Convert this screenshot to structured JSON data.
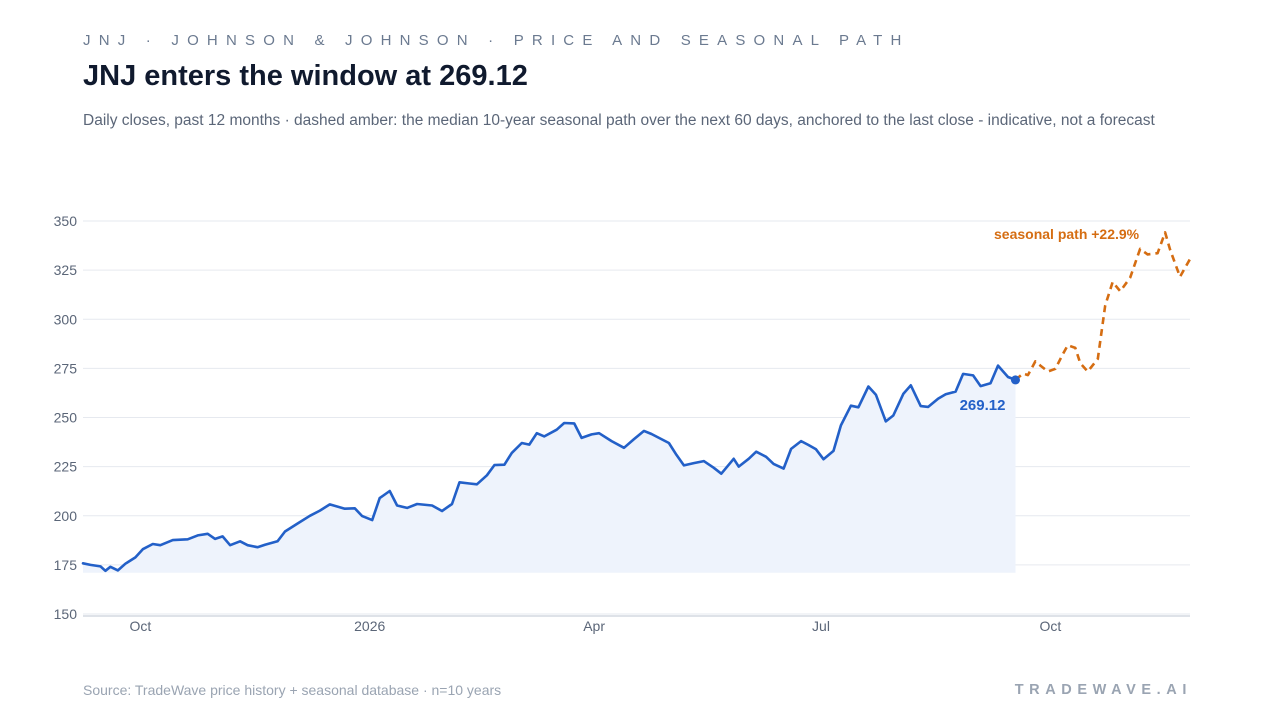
{
  "header": {
    "kicker": "JNJ · JOHNSON & JOHNSON · PRICE AND SEASONAL PATH",
    "title": "JNJ enters the window at 269.12",
    "subtitle": "Daily closes, past 12 months · dashed amber: the median 10-year seasonal path over the next 60 days, anchored to the last close - indicative, not a forecast"
  },
  "footer": {
    "source": "Source: TradeWave price history + seasonal database · n=10 years",
    "brand": "TRADEWAVE.AI"
  },
  "colors": {
    "price": "#2360c8",
    "area": "#eef3fc",
    "seasonal": "#d56d12",
    "grid": "#e6e9ef",
    "axis_text": "#5b6678"
  },
  "chart_data": {
    "type": "line",
    "x_ticks": [
      {
        "label": "Oct",
        "date": "2025-10-01"
      },
      {
        "label": "2026",
        "date": "2026-01-01"
      },
      {
        "label": "Apr",
        "date": "2026-04-01"
      },
      {
        "label": "Jul",
        "date": "2026-07-01"
      },
      {
        "label": "Oct",
        "date": "2026-10-01"
      }
    ],
    "xlim": [
      "2025-09-08",
      "2026-11-26"
    ],
    "ylim": [
      150,
      350
    ],
    "y_ticks": [
      150,
      175,
      200,
      225,
      250,
      275,
      300,
      325,
      350
    ],
    "grid": true,
    "series": [
      {
        "key": "price",
        "style": "solid",
        "points": [
          [
            "2025-09-08",
            175.8
          ],
          [
            "2025-09-11",
            175.0
          ],
          [
            "2025-09-15",
            174.2
          ],
          [
            "2025-09-17",
            172.0
          ],
          [
            "2025-09-19",
            174.0
          ],
          [
            "2025-09-22",
            172.2
          ],
          [
            "2025-09-25",
            175.6
          ],
          [
            "2025-09-29",
            178.8
          ],
          [
            "2025-10-02",
            183.0
          ],
          [
            "2025-10-06",
            185.6
          ],
          [
            "2025-10-09",
            185.0
          ],
          [
            "2025-10-14",
            187.6
          ],
          [
            "2025-10-20",
            188.0
          ],
          [
            "2025-10-24",
            190.0
          ],
          [
            "2025-10-28",
            190.8
          ],
          [
            "2025-10-31",
            188.2
          ],
          [
            "2025-11-03",
            189.5
          ],
          [
            "2025-11-06",
            185.0
          ],
          [
            "2025-11-10",
            187.0
          ],
          [
            "2025-11-13",
            185.0
          ],
          [
            "2025-11-17",
            184.0
          ],
          [
            "2025-11-20",
            185.2
          ],
          [
            "2025-11-25",
            187.0
          ],
          [
            "2025-11-28",
            192.0
          ],
          [
            "2025-12-03",
            196.0
          ],
          [
            "2025-12-08",
            200.0
          ],
          [
            "2025-12-12",
            202.6
          ],
          [
            "2025-12-16",
            205.8
          ],
          [
            "2025-12-22",
            203.6
          ],
          [
            "2025-12-26",
            203.8
          ],
          [
            "2025-12-29",
            199.8
          ],
          [
            "2026-01-02",
            197.8
          ],
          [
            "2026-01-05",
            209.0
          ],
          [
            "2026-01-09",
            212.6
          ],
          [
            "2026-01-12",
            205.2
          ],
          [
            "2026-01-16",
            204.0
          ],
          [
            "2026-01-20",
            206.0
          ],
          [
            "2026-01-26",
            205.2
          ],
          [
            "2026-01-30",
            202.4
          ],
          [
            "2026-02-03",
            206.0
          ],
          [
            "2026-02-06",
            217.0
          ],
          [
            "2026-02-10",
            216.4
          ],
          [
            "2026-02-13",
            216.0
          ],
          [
            "2026-02-17",
            220.6
          ],
          [
            "2026-02-20",
            225.8
          ],
          [
            "2026-02-24",
            226.0
          ],
          [
            "2026-02-27",
            232.0
          ],
          [
            "2026-03-03",
            237.0
          ],
          [
            "2026-03-06",
            236.2
          ],
          [
            "2026-03-09",
            242.0
          ],
          [
            "2026-03-12",
            240.4
          ],
          [
            "2026-03-17",
            243.8
          ],
          [
            "2026-03-20",
            247.2
          ],
          [
            "2026-03-24",
            247.0
          ],
          [
            "2026-03-27",
            239.6
          ],
          [
            "2026-03-31",
            241.4
          ],
          [
            "2026-04-03",
            242.0
          ],
          [
            "2026-04-08",
            238.0
          ],
          [
            "2026-04-13",
            234.6
          ],
          [
            "2026-04-17",
            239.0
          ],
          [
            "2026-04-21",
            243.2
          ],
          [
            "2026-04-24",
            241.6
          ],
          [
            "2026-04-28",
            239.0
          ],
          [
            "2026-05-01",
            237.0
          ],
          [
            "2026-05-04",
            231.0
          ],
          [
            "2026-05-07",
            225.6
          ],
          [
            "2026-05-11",
            226.8
          ],
          [
            "2026-05-15",
            227.8
          ],
          [
            "2026-05-19",
            224.4
          ],
          [
            "2026-05-22",
            221.4
          ],
          [
            "2026-05-27",
            229.0
          ],
          [
            "2026-05-29",
            225.0
          ],
          [
            "2026-06-02",
            229.0
          ],
          [
            "2026-06-05",
            232.6
          ],
          [
            "2026-06-09",
            230.0
          ],
          [
            "2026-06-12",
            226.4
          ],
          [
            "2026-06-16",
            224.0
          ],
          [
            "2026-06-19",
            234.0
          ],
          [
            "2026-06-23",
            238.0
          ],
          [
            "2026-06-26",
            236.0
          ],
          [
            "2026-06-29",
            233.8
          ],
          [
            "2026-07-02",
            228.8
          ],
          [
            "2026-07-06",
            233.0
          ],
          [
            "2026-07-09",
            246.0
          ],
          [
            "2026-07-13",
            256.0
          ],
          [
            "2026-07-16",
            255.2
          ],
          [
            "2026-07-20",
            265.8
          ],
          [
            "2026-07-23",
            261.6
          ],
          [
            "2026-07-27",
            248.0
          ],
          [
            "2026-07-30",
            251.0
          ],
          [
            "2026-08-03",
            262.0
          ],
          [
            "2026-08-06",
            266.4
          ],
          [
            "2026-08-10",
            255.8
          ],
          [
            "2026-08-13",
            255.4
          ],
          [
            "2026-08-17",
            259.6
          ],
          [
            "2026-08-20",
            261.8
          ],
          [
            "2026-08-24",
            263.2
          ],
          [
            "2026-08-27",
            272.2
          ],
          [
            "2026-08-31",
            271.4
          ],
          [
            "2026-09-03",
            266.0
          ],
          [
            "2026-09-07",
            267.4
          ],
          [
            "2026-09-10",
            276.4
          ],
          [
            "2026-09-14",
            270.6
          ],
          [
            "2026-09-17",
            269.12
          ]
        ]
      },
      {
        "key": "seasonal",
        "style": "dashed",
        "points": [
          [
            "2026-09-17",
            269.12
          ],
          [
            "2026-09-20",
            272.4
          ],
          [
            "2026-09-22",
            271.6
          ],
          [
            "2026-09-25",
            278.6
          ],
          [
            "2026-09-27",
            276.4
          ],
          [
            "2026-09-30",
            273.4
          ],
          [
            "2026-10-03",
            274.8
          ],
          [
            "2026-10-06",
            282.2
          ],
          [
            "2026-10-08",
            286.8
          ],
          [
            "2026-10-11",
            285.4
          ],
          [
            "2026-10-13",
            277.6
          ],
          [
            "2026-10-16",
            273.4
          ],
          [
            "2026-10-20",
            279.8
          ],
          [
            "2026-10-23",
            307.0
          ],
          [
            "2026-10-26",
            319.0
          ],
          [
            "2026-10-29",
            314.2
          ],
          [
            "2026-11-02",
            321.2
          ],
          [
            "2026-11-06",
            335.8
          ],
          [
            "2026-11-09",
            333.0
          ],
          [
            "2026-11-13",
            333.6
          ],
          [
            "2026-11-16",
            344.2
          ],
          [
            "2026-11-18",
            335.4
          ],
          [
            "2026-11-22",
            321.6
          ],
          [
            "2026-11-26",
            330.6
          ]
        ]
      }
    ],
    "annotations": {
      "last_close": "269.12",
      "seasonal": "seasonal path +22.9%"
    }
  }
}
